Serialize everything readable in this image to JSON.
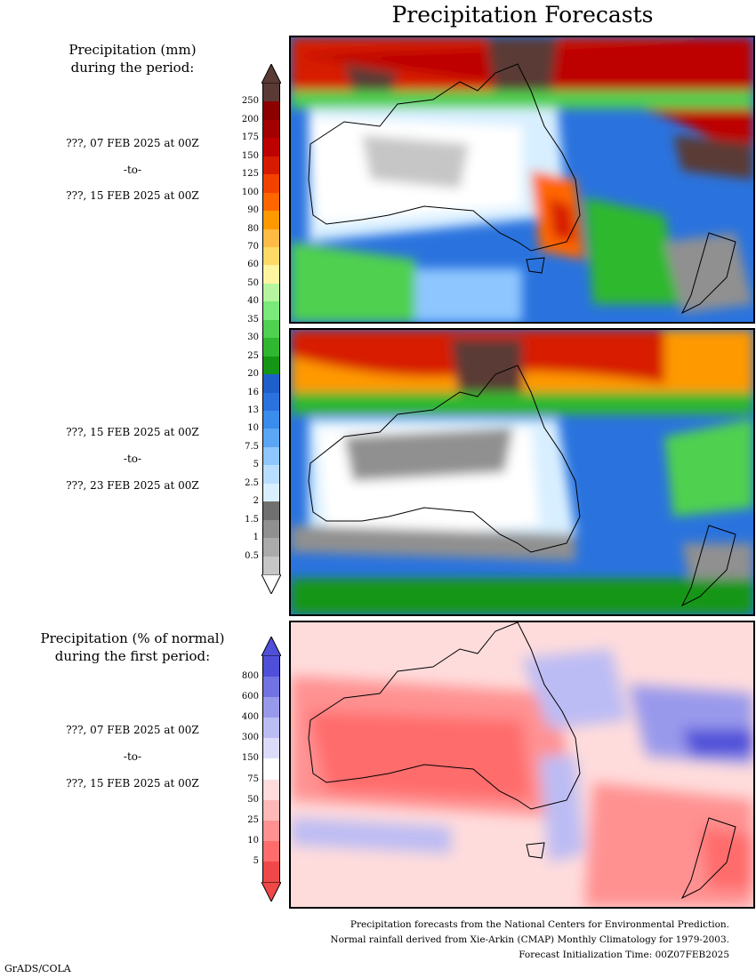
{
  "header": {
    "title": "Precipitation Forecasts"
  },
  "legend_mm": {
    "title": [
      "Precipitation (mm)",
      "during the period:"
    ],
    "ticks": [
      "250",
      "200",
      "175",
      "150",
      "125",
      "100",
      "90",
      "80",
      "70",
      "60",
      "50",
      "40",
      "35",
      "30",
      "25",
      "20",
      "16",
      "13",
      "10",
      "7.5",
      "5",
      "2.5",
      "2",
      "1.5",
      "1",
      "0.5"
    ],
    "colors": [
      "#5a3a35",
      "#8c0000",
      "#a30000",
      "#bd0000",
      "#d71b00",
      "#f24200",
      "#ff6600",
      "#ff9900",
      "#ffbb44",
      "#ffd966",
      "#fff5a0",
      "#b6f5a0",
      "#7ae87a",
      "#4fd04f",
      "#2fb82f",
      "#149614",
      "#1f5fcc",
      "#2a73de",
      "#3a8ced",
      "#5aa6f5",
      "#8ec6ff",
      "#b8deff",
      "#d8efff",
      "#707070",
      "#909090",
      "#ababab",
      "#c6c6c6"
    ],
    "top_arrow_color": "#5a3a35",
    "bottom_arrow_color": "#ffffff"
  },
  "legend_pct": {
    "title": [
      "Precipitation (% of normal)",
      "during the first period:"
    ],
    "ticks": [
      "800",
      "600",
      "400",
      "300",
      "150",
      "75",
      "50",
      "25",
      "10",
      "5"
    ],
    "colors": [
      "#4f4fd9",
      "#7272e3",
      "#9999ec",
      "#bcbcf4",
      "#dcdcfa",
      "#ffffff",
      "#ffdcdc",
      "#ffb8b8",
      "#ff9191",
      "#ff6c6c",
      "#f04848"
    ],
    "top_arrow_color": "#4f4fd9",
    "bottom_arrow_color": "#f04848"
  },
  "period1": {
    "from": "???, 07 FEB 2025 at 00Z",
    "sep": "-to-",
    "to": "???, 15 FEB 2025 at 00Z"
  },
  "period2": {
    "from": "???, 15 FEB 2025 at 00Z",
    "sep": "-to-",
    "to": "???, 23 FEB 2025 at 00Z"
  },
  "period3": {
    "from": "???, 07 FEB 2025 at 00Z",
    "sep": "-to-",
    "to": "???, 15 FEB 2025 at 00Z"
  },
  "footer": {
    "line1": "Precipitation forecasts from the National Centers for Environmental Prediction.",
    "line2": "Normal rainfall derived from Xie-Arkin (CMAP) Monthly Climatology for 1979-2003.",
    "line3": "Forecast Initialization Time: 00Z07FEB2025"
  },
  "credit": "GrADS/COLA"
}
